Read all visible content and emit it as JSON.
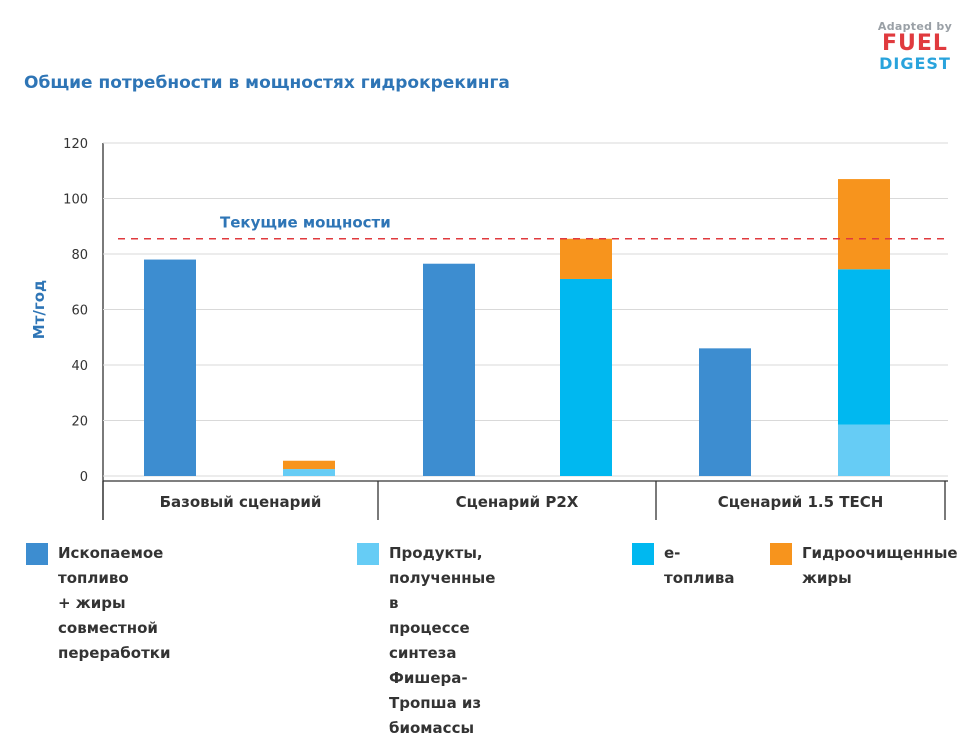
{
  "title": "Общие потребности в мощностях гидрокрекинга",
  "logo": {
    "adapted": "Adapted by",
    "fuel": "FUEL",
    "digest": "DIGEST"
  },
  "chart_data": {
    "type": "bar",
    "stacked": true,
    "ylabel": "Мт/год",
    "ylim": [
      0,
      120
    ],
    "yticks": [
      0,
      20,
      40,
      60,
      80,
      100,
      120
    ],
    "groups": [
      "Базовый сценарий",
      "Сценарий P2X",
      "Сценарий 1.5 TECH"
    ],
    "reference_line": {
      "label": "Текущие мощности",
      "value": 85.5,
      "color": "#e03a3e"
    },
    "series": [
      {
        "name": "Ископаемое топливо\n+ жиры совместной переработки",
        "color": "#3d8dd0"
      },
      {
        "name": "Продукты, полученные в процессе синтеза Фишера-Тропша из биомассы",
        "color": "#66ccf5"
      },
      {
        "name": "е-топлива",
        "color": "#00b8f0"
      },
      {
        "name": "Гидроочищенные жиры",
        "color": "#f7941d"
      }
    ],
    "bars": [
      {
        "group": 0,
        "slot": 0,
        "segments": [
          {
            "series": 0,
            "value": 78
          }
        ]
      },
      {
        "group": 0,
        "slot": 1,
        "segments": [
          {
            "series": 1,
            "value": 2.5
          },
          {
            "series": 3,
            "value": 3
          }
        ]
      },
      {
        "group": 1,
        "slot": 0,
        "segments": [
          {
            "series": 0,
            "value": 76.5
          }
        ]
      },
      {
        "group": 1,
        "slot": 1,
        "segments": [
          {
            "series": 2,
            "value": 71
          },
          {
            "series": 3,
            "value": 14.5
          }
        ]
      },
      {
        "group": 2,
        "slot": 0,
        "segments": [
          {
            "series": 0,
            "value": 46
          }
        ]
      },
      {
        "group": 2,
        "slot": 1,
        "segments": [
          {
            "series": 1,
            "value": 18.5
          },
          {
            "series": 2,
            "value": 56
          },
          {
            "series": 3,
            "value": 32.5
          }
        ]
      }
    ]
  },
  "legend": [
    {
      "label": "Ископаемое топливо\n+ жиры совместной переработки",
      "color": "#3d8dd0"
    },
    {
      "label": "Продукты, полученные в\nпроцессе синтеза\nФишера-Тропша из\nбиомассы",
      "color": "#66ccf5"
    },
    {
      "label": "е-топлива",
      "color": "#00b8f0"
    },
    {
      "label": "Гидроочищенные\nжиры",
      "color": "#f7941d"
    }
  ]
}
